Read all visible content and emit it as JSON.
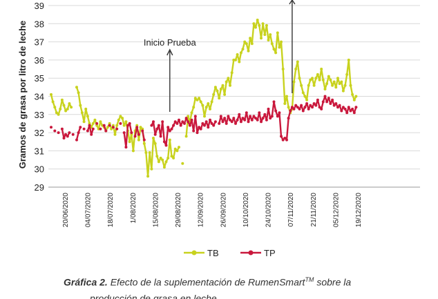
{
  "chart_data": {
    "type": "line",
    "ylabel": "Gramos de grasa por litro de leche",
    "ylim": [
      29,
      39
    ],
    "yticks": [
      "29",
      "30",
      "31",
      "32",
      "33",
      "34",
      "35",
      "36",
      "37",
      "38",
      "39"
    ],
    "x_tick_labels": [
      "20/06/2020",
      "04/07/2020",
      "18/07/2020",
      "1/08/2020",
      "15/08/2020",
      "29/08/2020",
      "12/09/2020",
      "26/09/2020",
      "10/10/2020",
      "24/10/2020",
      "07/11/2020",
      "21/11/2020",
      "05/12/2020",
      "19/12/2020"
    ],
    "x_range": [
      0,
      199
    ],
    "grid": true,
    "legend_position": "bottom",
    "annotations": [
      {
        "text": "Inicio Prueba",
        "x": 65
      }
    ],
    "extra_arrow_x": 132,
    "series": [
      {
        "name": "TB",
        "color": "#c8d21e",
        "values": [
          [
            0,
            34.1
          ],
          [
            1,
            33.7
          ],
          [
            2,
            33.4
          ],
          [
            3,
            33.1
          ],
          [
            4,
            33.0
          ],
          [
            5,
            33.3
          ],
          [
            6,
            33.8
          ],
          [
            7,
            33.5
          ],
          [
            8,
            33.2
          ],
          [
            9,
            33.3
          ],
          [
            10,
            33.6
          ],
          [
            11,
            33.4
          ],
          [
            14,
            34.5
          ],
          [
            15,
            34.2
          ],
          [
            16,
            33.5
          ],
          [
            17,
            33.1
          ],
          [
            18,
            32.6
          ],
          [
            19,
            33.3
          ],
          [
            20,
            32.9
          ],
          [
            21,
            32.5
          ],
          [
            22,
            32.3
          ],
          [
            23,
            32.5
          ],
          [
            24,
            32.7
          ],
          [
            25,
            32.4
          ],
          [
            26,
            32.2
          ],
          [
            27,
            32.6
          ],
          [
            28,
            32.4
          ],
          [
            29,
            32.3
          ],
          [
            30,
            32.1
          ],
          [
            31,
            32.3
          ],
          [
            32,
            32.5
          ],
          [
            33,
            32.2
          ],
          [
            34,
            32.4
          ],
          [
            35,
            31.9
          ],
          [
            36,
            32.4
          ],
          [
            37,
            32.7
          ],
          [
            38,
            32.9
          ],
          [
            39,
            32.8
          ],
          [
            40,
            32.4
          ],
          [
            41,
            32.6
          ],
          [
            42,
            32.1
          ],
          [
            43,
            31.5
          ],
          [
            44,
            31.9
          ],
          [
            45,
            31.0
          ],
          [
            46,
            32.1
          ],
          [
            47,
            32.4
          ],
          [
            48,
            31.6
          ],
          [
            49,
            32.3
          ],
          [
            50,
            32.2
          ],
          [
            51,
            31.4
          ],
          [
            52,
            30.9
          ],
          [
            53,
            29.6
          ],
          [
            54,
            30.9
          ],
          [
            55,
            30.0
          ],
          [
            56,
            31.7
          ],
          [
            57,
            31.4
          ],
          [
            58,
            30.7
          ],
          [
            59,
            30.4
          ],
          [
            60,
            30.6
          ],
          [
            61,
            30.5
          ],
          [
            62,
            30.1
          ],
          [
            63,
            30.4
          ],
          [
            64,
            30.6
          ],
          [
            65,
            31.6
          ],
          [
            66,
            30.7
          ],
          [
            67,
            30.6
          ],
          [
            68,
            31.1
          ],
          [
            69,
            31.0
          ],
          [
            70,
            31.2
          ],
          [
            72,
            30.3
          ],
          [
            74,
            31.8
          ],
          [
            75,
            32.9
          ],
          [
            76,
            32.6
          ],
          [
            77,
            33.1
          ],
          [
            78,
            33.4
          ],
          [
            79,
            33.9
          ],
          [
            80,
            33.8
          ],
          [
            81,
            33.9
          ],
          [
            82,
            33.7
          ],
          [
            83,
            33.5
          ],
          [
            84,
            32.9
          ],
          [
            85,
            33.4
          ],
          [
            86,
            33.6
          ],
          [
            87,
            33.3
          ],
          [
            88,
            33.7
          ],
          [
            89,
            34.1
          ],
          [
            90,
            34.5
          ],
          [
            91,
            34.3
          ],
          [
            92,
            33.9
          ],
          [
            93,
            34.4
          ],
          [
            94,
            34.6
          ],
          [
            95,
            34.1
          ],
          [
            96,
            34.8
          ],
          [
            97,
            35.0
          ],
          [
            98,
            34.6
          ],
          [
            99,
            35.3
          ],
          [
            100,
            36.0
          ],
          [
            101,
            36.0
          ],
          [
            102,
            36.3
          ],
          [
            103,
            35.9
          ],
          [
            104,
            36.4
          ],
          [
            105,
            36.6
          ],
          [
            106,
            37.0
          ],
          [
            107,
            36.9
          ],
          [
            108,
            36.5
          ],
          [
            109,
            37.2
          ],
          [
            110,
            36.9
          ],
          [
            111,
            38.0
          ],
          [
            112,
            37.8
          ],
          [
            113,
            38.2
          ],
          [
            114,
            37.9
          ],
          [
            115,
            37.2
          ],
          [
            116,
            38.0
          ],
          [
            117,
            37.4
          ],
          [
            118,
            37.9
          ],
          [
            119,
            37.1
          ],
          [
            120,
            37.4
          ],
          [
            121,
            36.9
          ],
          [
            122,
            36.6
          ],
          [
            123,
            36.4
          ],
          [
            124,
            37.5
          ],
          [
            125,
            36.7
          ],
          [
            126,
            37.0
          ],
          [
            127,
            35.5
          ],
          [
            128,
            33.6
          ],
          [
            129,
            34.0
          ],
          [
            130,
            33.4
          ],
          [
            131,
            33.1
          ],
          [
            132,
            33.3
          ],
          [
            133,
            34.8
          ],
          [
            134,
            35.5
          ],
          [
            135,
            35.9
          ],
          [
            136,
            35.0
          ],
          [
            137,
            34.6
          ],
          [
            138,
            34.2
          ],
          [
            139,
            34.0
          ],
          [
            140,
            33.8
          ],
          [
            141,
            34.6
          ],
          [
            142,
            34.9
          ],
          [
            143,
            35.0
          ],
          [
            144,
            34.6
          ],
          [
            145,
            35.0
          ],
          [
            146,
            35.2
          ],
          [
            147,
            34.9
          ],
          [
            148,
            35.5
          ],
          [
            149,
            34.9
          ],
          [
            150,
            34.4
          ],
          [
            151,
            34.7
          ],
          [
            152,
            35.1
          ],
          [
            153,
            34.9
          ],
          [
            154,
            34.6
          ],
          [
            155,
            34.8
          ],
          [
            156,
            34.5
          ],
          [
            157,
            35.0
          ],
          [
            158,
            34.7
          ],
          [
            159,
            34.8
          ],
          [
            160,
            34.3
          ],
          [
            161,
            34.6
          ],
          [
            162,
            35.2
          ],
          [
            163,
            36.0
          ],
          [
            164,
            34.6
          ],
          [
            165,
            34.1
          ],
          [
            166,
            33.8
          ],
          [
            167,
            34.0
          ]
        ]
      },
      {
        "name": "TP",
        "color": "#c9183c",
        "values": [
          [
            0,
            32.3
          ],
          [
            2,
            32.1
          ],
          [
            4,
            32.0
          ],
          [
            6,
            32.2
          ],
          [
            7,
            31.7
          ],
          [
            8,
            31.9
          ],
          [
            9,
            31.8
          ],
          [
            10,
            32.0
          ],
          [
            12,
            31.9
          ],
          [
            14,
            31.6
          ],
          [
            15,
            32.0
          ],
          [
            16,
            32.3
          ],
          [
            18,
            32.2
          ],
          [
            20,
            32.1
          ],
          [
            21,
            32.4
          ],
          [
            22,
            31.9
          ],
          [
            23,
            32.2
          ],
          [
            25,
            32.5
          ],
          [
            27,
            32.2
          ],
          [
            29,
            32.4
          ],
          [
            30,
            32.1
          ],
          [
            32,
            32.4
          ],
          [
            34,
            32.3
          ],
          [
            36,
            32.2
          ],
          [
            38,
            32.5
          ],
          [
            40,
            32.0
          ],
          [
            41,
            31.2
          ],
          [
            42,
            32.4
          ],
          [
            43,
            32.5
          ],
          [
            44,
            32.0
          ],
          [
            46,
            31.8
          ],
          [
            47,
            32.3
          ],
          [
            48,
            31.9
          ],
          [
            50,
            32.1
          ],
          [
            51,
            31.6
          ],
          [
            55,
            32.4
          ],
          [
            56,
            32.6
          ],
          [
            57,
            31.9
          ],
          [
            58,
            32.2
          ],
          [
            59,
            32.4
          ],
          [
            60,
            31.8
          ],
          [
            61,
            32.6
          ],
          [
            62,
            31.5
          ],
          [
            63,
            31.3
          ],
          [
            64,
            32.3
          ],
          [
            65,
            32.1
          ],
          [
            66,
            32.2
          ],
          [
            67,
            32.4
          ],
          [
            68,
            32.6
          ],
          [
            69,
            32.5
          ],
          [
            70,
            32.7
          ],
          [
            71,
            32.4
          ],
          [
            72,
            32.6
          ],
          [
            73,
            32.5
          ],
          [
            74,
            32.8
          ],
          [
            75,
            32.6
          ],
          [
            76,
            32.4
          ],
          [
            77,
            32.7
          ],
          [
            78,
            32.1
          ],
          [
            79,
            32.9
          ],
          [
            80,
            32.0
          ],
          [
            81,
            32.3
          ],
          [
            82,
            32.2
          ],
          [
            83,
            32.5
          ],
          [
            84,
            32.4
          ],
          [
            85,
            32.6
          ],
          [
            86,
            32.3
          ],
          [
            87,
            32.7
          ],
          [
            88,
            32.5
          ],
          [
            89,
            32.4
          ],
          [
            90,
            32.6
          ],
          [
            92,
            32.5
          ],
          [
            93,
            32.9
          ],
          [
            94,
            32.6
          ],
          [
            95,
            32.8
          ],
          [
            96,
            32.5
          ],
          [
            97,
            32.9
          ],
          [
            98,
            32.7
          ],
          [
            99,
            32.6
          ],
          [
            100,
            32.8
          ],
          [
            101,
            32.5
          ],
          [
            102,
            32.7
          ],
          [
            103,
            33.0
          ],
          [
            104,
            32.6
          ],
          [
            105,
            32.8
          ],
          [
            106,
            32.7
          ],
          [
            107,
            33.1
          ],
          [
            108,
            32.6
          ],
          [
            109,
            32.9
          ],
          [
            110,
            32.7
          ],
          [
            111,
            32.9
          ],
          [
            112,
            32.8
          ],
          [
            113,
            32.7
          ],
          [
            114,
            33.1
          ],
          [
            115,
            32.6
          ],
          [
            116,
            32.8
          ],
          [
            117,
            33.0
          ],
          [
            118,
            32.7
          ],
          [
            119,
            33.3
          ],
          [
            120,
            32.8
          ],
          [
            121,
            32.9
          ],
          [
            122,
            33.7
          ],
          [
            123,
            33.2
          ],
          [
            124,
            32.9
          ],
          [
            125,
            33.1
          ],
          [
            126,
            31.8
          ],
          [
            127,
            31.6
          ],
          [
            128,
            31.7
          ],
          [
            129,
            31.6
          ],
          [
            130,
            32.8
          ],
          [
            131,
            33.2
          ],
          [
            132,
            33.4
          ],
          [
            133,
            33.3
          ],
          [
            134,
            33.5
          ],
          [
            135,
            33.4
          ],
          [
            136,
            33.3
          ],
          [
            137,
            33.5
          ],
          [
            138,
            33.2
          ],
          [
            139,
            33.4
          ],
          [
            140,
            33.6
          ],
          [
            141,
            33.3
          ],
          [
            142,
            33.5
          ],
          [
            143,
            33.4
          ],
          [
            144,
            33.6
          ],
          [
            145,
            33.5
          ],
          [
            146,
            33.8
          ],
          [
            147,
            33.4
          ],
          [
            148,
            33.3
          ],
          [
            149,
            33.7
          ],
          [
            150,
            34.0
          ],
          [
            151,
            33.7
          ],
          [
            152,
            33.9
          ],
          [
            153,
            33.6
          ],
          [
            154,
            33.8
          ],
          [
            155,
            33.5
          ],
          [
            156,
            33.6
          ],
          [
            157,
            33.4
          ],
          [
            158,
            33.5
          ],
          [
            159,
            33.2
          ],
          [
            160,
            33.4
          ],
          [
            161,
            33.3
          ],
          [
            162,
            33.1
          ],
          [
            163,
            33.4
          ],
          [
            164,
            33.2
          ],
          [
            165,
            33.3
          ],
          [
            166,
            33.1
          ],
          [
            167,
            33.4
          ]
        ]
      }
    ]
  },
  "caption": {
    "label": "Gráfica 2.",
    "text": "Efecto de la suplementación de RumenSmart",
    "sup": "TM",
    "text2": "sobre la",
    "line2": "producción de grasa en leche"
  }
}
